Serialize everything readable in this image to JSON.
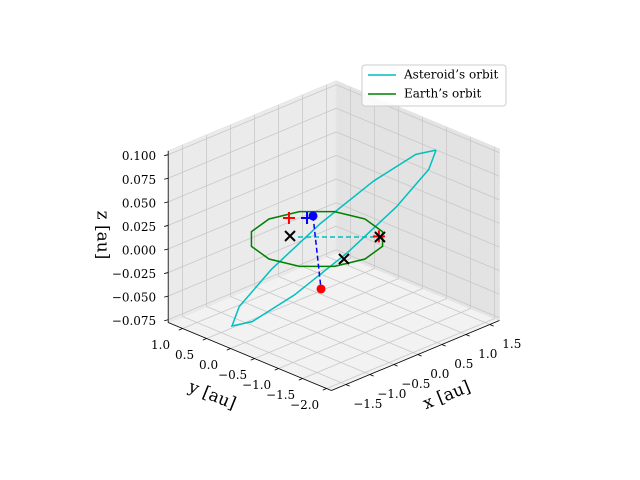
{
  "chart_data": {
    "type": "line3d",
    "xlabel": "x [au]",
    "ylabel": "y [au]",
    "zlabel": "z [au]",
    "xlim": [
      -1.8,
      1.7
    ],
    "ylim": [
      -2.1,
      1.3
    ],
    "zlim": [
      -0.078,
      0.104
    ],
    "xticks": [
      {
        "value": -1.5,
        "label": "−1.5"
      },
      {
        "value": -1,
        "label": "−1.0"
      },
      {
        "value": -0.5,
        "label": "−0.5"
      },
      {
        "value": 0,
        "label": "0.0"
      },
      {
        "value": 0.5,
        "label": "0.5"
      },
      {
        "value": 1,
        "label": "1.0"
      },
      {
        "value": 1.5,
        "label": "1.5"
      }
    ],
    "yticks": [
      {
        "value": 1,
        "label": "1.0"
      },
      {
        "value": 0.5,
        "label": "0.5"
      },
      {
        "value": 0,
        "label": "0.0"
      },
      {
        "value": -0.5,
        "label": "−0.5"
      },
      {
        "value": -1,
        "label": "−1.0"
      },
      {
        "value": -1.5,
        "label": "−1.5"
      },
      {
        "value": -2,
        "label": "−2.0"
      }
    ],
    "zticks": [
      {
        "value": 0.1,
        "label": "0.100"
      },
      {
        "value": 0.075,
        "label": "0.075"
      },
      {
        "value": 0.05,
        "label": "0.050"
      },
      {
        "value": 0.025,
        "label": "0.025"
      },
      {
        "value": 0,
        "label": "0.000"
      },
      {
        "value": -0.025,
        "label": "−0.025"
      },
      {
        "value": -0.05,
        "label": "−0.050"
      },
      {
        "value": -0.075,
        "label": "−0.075"
      }
    ],
    "grid": true,
    "legend": "upper right",
    "series": [
      {
        "name": "Asteroid’s orbit",
        "color": "#00bfbf",
        "x": [
          1.34,
          1.067,
          0.566,
          -0.038,
          -0.577,
          -0.903,
          -0.938,
          -0.663,
          -0.162,
          0.442,
          0.981,
          1.307,
          1.34
        ],
        "y": [
          -1.14,
          -1.262,
          -1.086,
          -0.663,
          -0.104,
          0.448,
          0.833,
          0.958,
          0.782,
          0.358,
          -0.2,
          -0.752,
          -1.14
        ],
        "z": [
          0.09,
          0.078,
          0.045,
          0,
          -0.045,
          -0.078,
          -0.09,
          -0.078,
          -0.045,
          0,
          0.045,
          0.078,
          0.09
        ]
      },
      {
        "name": "Earth’s orbit",
        "color": "#008000",
        "x": [
          1,
          0.866,
          0.5,
          0,
          -0.5,
          -0.866,
          -1,
          -0.866,
          -0.5,
          0,
          0.5,
          0.866,
          1
        ],
        "y": [
          0,
          0.5,
          0.866,
          1,
          0.866,
          0.5,
          0,
          -0.5,
          -0.866,
          -1,
          -0.866,
          -0.5,
          0
        ],
        "z": [
          0,
          0,
          0,
          0,
          0,
          0,
          0,
          0,
          0,
          0,
          0,
          0,
          0
        ]
      }
    ],
    "dashed_lines": [
      {
        "color": "#00bfbf",
        "x": [
          -0.148,
          0.706
        ],
        "y": [
          0.248,
          -0.606
        ],
        "z": [
          0,
          0
        ]
      },
      {
        "color": "#0000ff",
        "x": [
          0.063,
          0.207
        ],
        "y": [
          0.146,
          0.123
        ],
        "z": [
          0.02,
          -0.06
        ]
      }
    ],
    "markers": [
      {
        "marker": "o",
        "color": "#0000ff",
        "x": 0.063,
        "y": 0.146,
        "z": 0.02
      },
      {
        "marker": "o",
        "color": "#ff0000",
        "x": 0.207,
        "y": 0.123,
        "z": -0.06
      },
      {
        "marker": "+",
        "color": "#ff0000",
        "x": 0.233,
        "y": 0.817,
        "z": 0
      },
      {
        "marker": "+",
        "color": "#ff0000",
        "x": 0.71,
        "y": -0.58,
        "z": 0
      },
      {
        "marker": "+",
        "color": "#0000ff",
        "x": 0.421,
        "y": 0.629,
        "z": 0
      },
      {
        "marker": "x",
        "color": "#000000",
        "x": -0.206,
        "y": 0.356,
        "z": 0
      },
      {
        "marker": "x",
        "color": "#000000",
        "x": 0.706,
        "y": -0.606,
        "z": 0
      },
      {
        "marker": "x",
        "color": "#000000",
        "x": -0.219,
        "y": -0.781,
        "z": 0
      }
    ]
  }
}
